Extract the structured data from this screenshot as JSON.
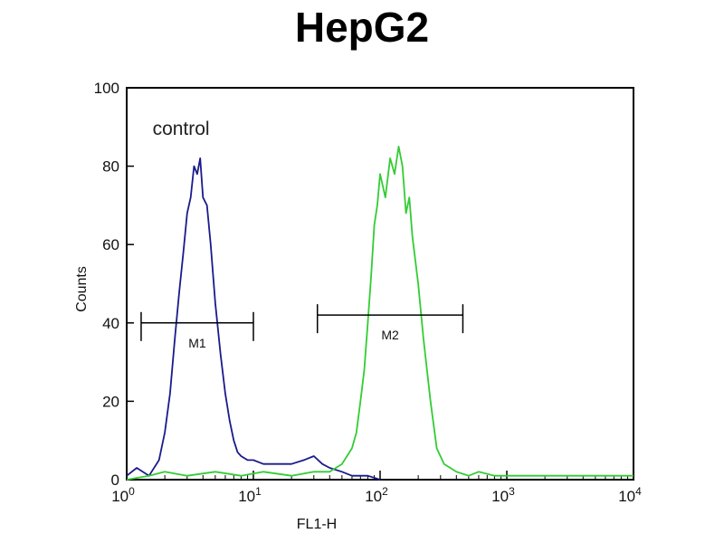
{
  "chart_data": {
    "type": "line",
    "title": "HepG2",
    "xlabel": "FL1-H",
    "ylabel": "Counts",
    "x_scale": "log",
    "xlim": [
      1,
      10000
    ],
    "ylim": [
      0,
      100
    ],
    "x_ticks": [
      {
        "value": 1,
        "base": "10",
        "exp": "0"
      },
      {
        "value": 10,
        "base": "10",
        "exp": "1"
      },
      {
        "value": 100,
        "base": "10",
        "exp": "2"
      },
      {
        "value": 1000,
        "base": "10",
        "exp": "3"
      },
      {
        "value": 10000,
        "base": "10",
        "exp": "4"
      }
    ],
    "y_ticks": [
      0,
      20,
      40,
      60,
      80,
      100
    ],
    "grid": false,
    "annotations": [
      {
        "text": "control",
        "x": 1.6,
        "y": 88
      }
    ],
    "markers": [
      {
        "label": "M1",
        "x_start": 1.3,
        "x_end": 10,
        "y": 40
      },
      {
        "label": "M2",
        "x_start": 32,
        "x_end": 450,
        "y": 42
      }
    ],
    "series": [
      {
        "color": "#1a1a8c",
        "x": [
          1,
          1.2,
          1.5,
          1.8,
          2.0,
          2.2,
          2.4,
          2.6,
          2.8,
          3.0,
          3.2,
          3.4,
          3.6,
          3.8,
          4.0,
          4.3,
          4.6,
          5.0,
          5.5,
          6.0,
          6.5,
          7.0,
          7.5,
          8.0,
          9.0,
          10,
          12,
          15,
          20,
          25,
          30,
          35,
          40,
          50,
          60,
          80,
          100
        ],
        "y": [
          1,
          3,
          1,
          5,
          12,
          22,
          36,
          48,
          58,
          68,
          72,
          80,
          78,
          82,
          72,
          70,
          60,
          45,
          32,
          22,
          15,
          10,
          7,
          6,
          5,
          5,
          4,
          4,
          4,
          5,
          6,
          4,
          3,
          2,
          1,
          1,
          0
        ]
      },
      {
        "color": "#33cc33",
        "x": [
          1,
          1.5,
          2,
          3,
          5,
          8,
          12,
          20,
          30,
          40,
          50,
          60,
          65,
          70,
          75,
          80,
          85,
          90,
          95,
          100,
          110,
          120,
          130,
          140,
          150,
          160,
          170,
          180,
          200,
          220,
          250,
          280,
          320,
          400,
          500,
          600,
          800,
          1000,
          2000,
          5000,
          10000
        ],
        "y": [
          0,
          1,
          2,
          1,
          2,
          1,
          2,
          1,
          2,
          2,
          4,
          8,
          12,
          20,
          28,
          40,
          52,
          65,
          70,
          78,
          72,
          82,
          78,
          85,
          80,
          68,
          72,
          62,
          50,
          36,
          20,
          8,
          4,
          2,
          1,
          2,
          1,
          1,
          1,
          1,
          1
        ]
      }
    ]
  }
}
